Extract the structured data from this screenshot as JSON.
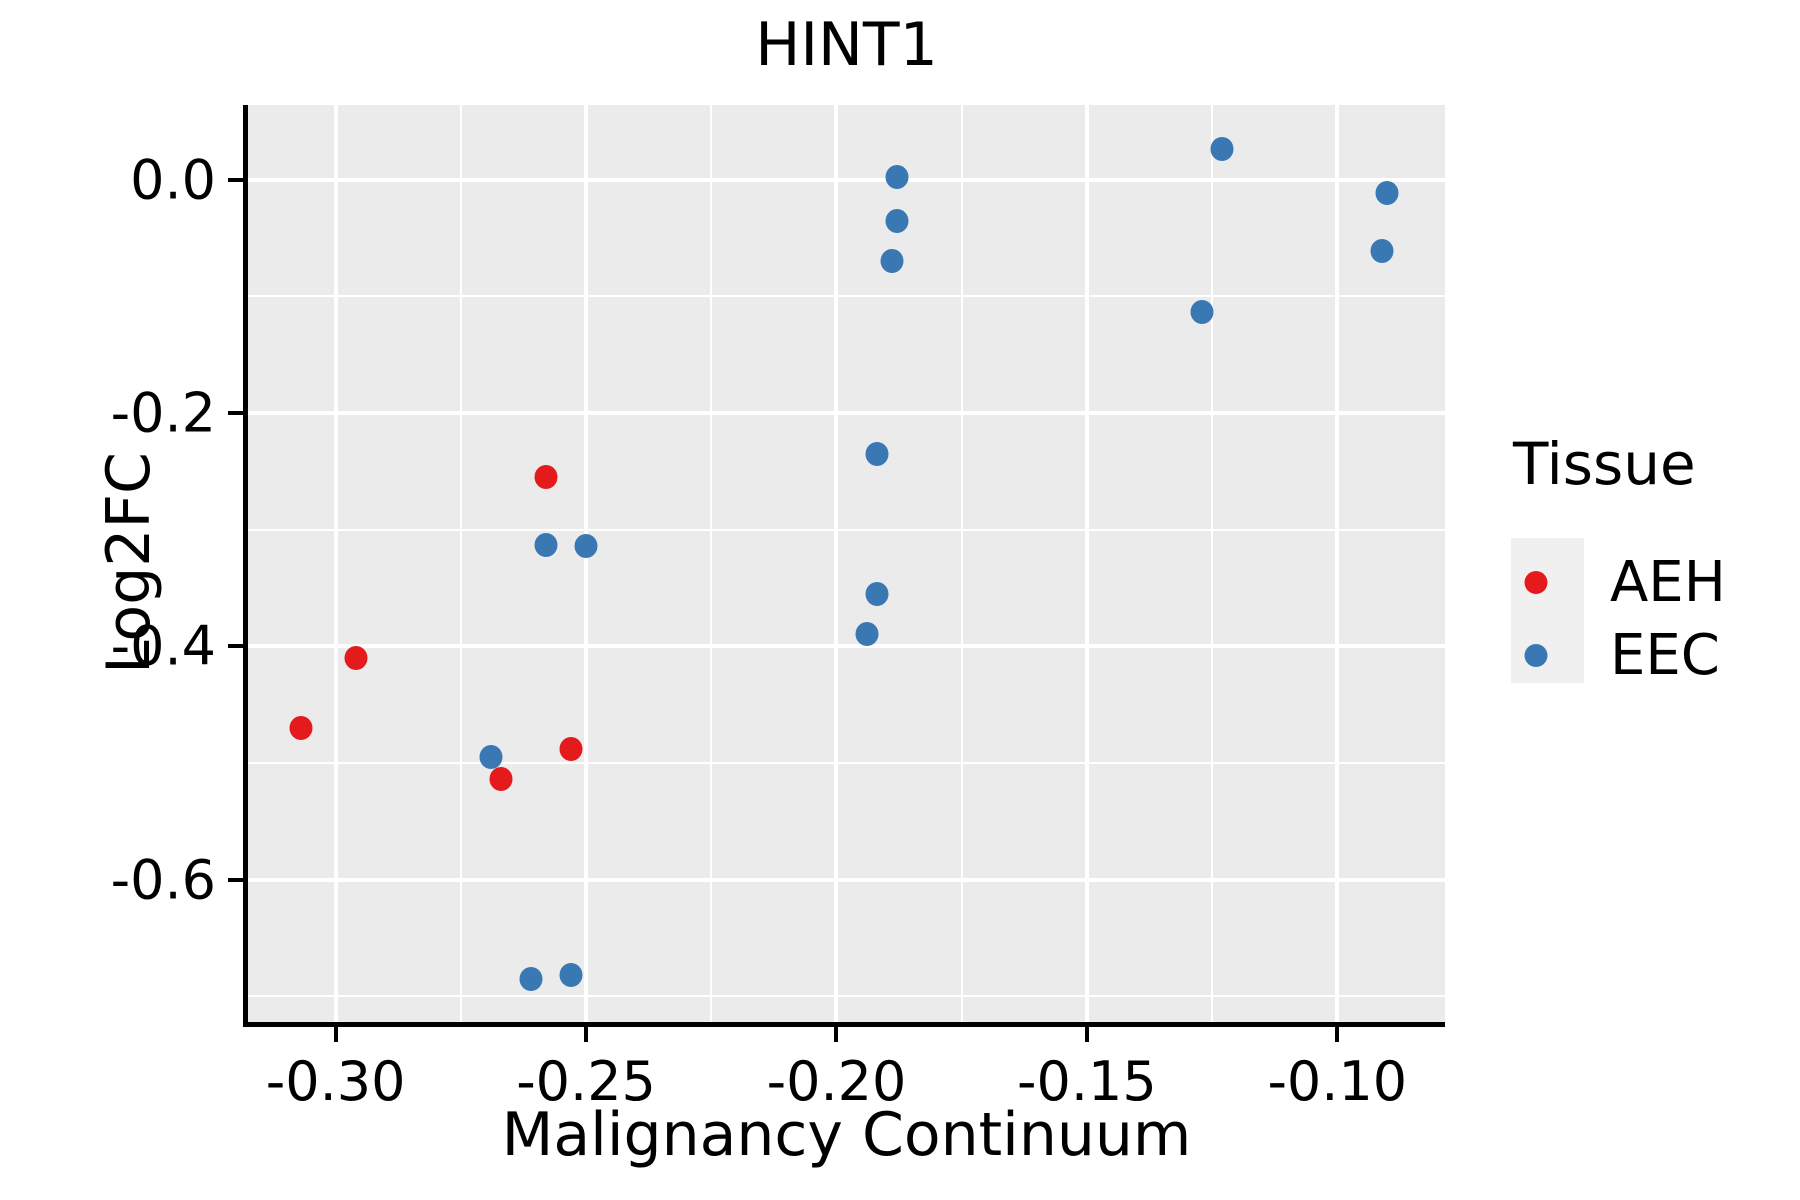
{
  "title": "HINT1",
  "x_axis": {
    "title": "Malignancy Continuum"
  },
  "y_axis": {
    "title": "Log2FC"
  },
  "legend": {
    "title": "Tissue",
    "items": [
      {
        "label": "AEH",
        "color": "#e41a1c"
      },
      {
        "label": "EEC",
        "color": "#3a78b4"
      }
    ]
  },
  "colors": {
    "panel_background": "#ebebeb",
    "gridline": "#ffffff",
    "axis": "#000000",
    "legend_key_background": "#f0f0f0",
    "aeh_red": "#e41a1c",
    "eec_blue": "#3a78b4"
  },
  "chart_data": {
    "type": "scatter",
    "title": "HINT1",
    "xlabel": "Malignancy Continuum",
    "ylabel": "Log2FC",
    "xlim": [
      -0.3175,
      -0.0785
    ],
    "ylim": [
      -0.722,
      0.064
    ],
    "x_ticks": [
      {
        "v": -0.3,
        "label": "-0.30"
      },
      {
        "v": -0.25,
        "label": "-0.25"
      },
      {
        "v": -0.2,
        "label": "-0.20"
      },
      {
        "v": -0.15,
        "label": "-0.15"
      },
      {
        "v": -0.1,
        "label": "-0.10"
      }
    ],
    "y_ticks": [
      {
        "v": 0.0,
        "label": "0.0"
      },
      {
        "v": -0.2,
        "label": "-0.2"
      },
      {
        "v": -0.4,
        "label": "-0.4"
      },
      {
        "v": -0.6,
        "label": "-0.6"
      }
    ],
    "x_minor": [
      -0.275,
      -0.225,
      -0.175,
      -0.125
    ],
    "y_minor": [
      -0.1,
      -0.3,
      -0.5,
      -0.7
    ],
    "grid": true,
    "legend_position": "right",
    "legend_title": "Tissue",
    "series": [
      {
        "name": "AEH",
        "color": "#e41a1c",
        "points": [
          [
            -0.307,
            -0.47
          ],
          [
            -0.296,
            -0.41
          ],
          [
            -0.267,
            -0.514
          ],
          [
            -0.258,
            -0.255
          ],
          [
            -0.253,
            -0.488
          ]
        ]
      },
      {
        "name": "EEC",
        "color": "#3a78b4",
        "points": [
          [
            -0.269,
            -0.495
          ],
          [
            -0.261,
            -0.685
          ],
          [
            -0.258,
            -0.313
          ],
          [
            -0.253,
            -0.682
          ],
          [
            -0.25,
            -0.314
          ],
          [
            -0.194,
            -0.389
          ],
          [
            -0.192,
            -0.235
          ],
          [
            -0.192,
            -0.355
          ],
          [
            -0.189,
            -0.07
          ],
          [
            -0.188,
            0.002
          ],
          [
            -0.188,
            -0.035
          ],
          [
            -0.127,
            -0.113
          ],
          [
            -0.123,
            0.026
          ],
          [
            -0.091,
            -0.061
          ],
          [
            -0.09,
            -0.011
          ]
        ]
      }
    ]
  }
}
